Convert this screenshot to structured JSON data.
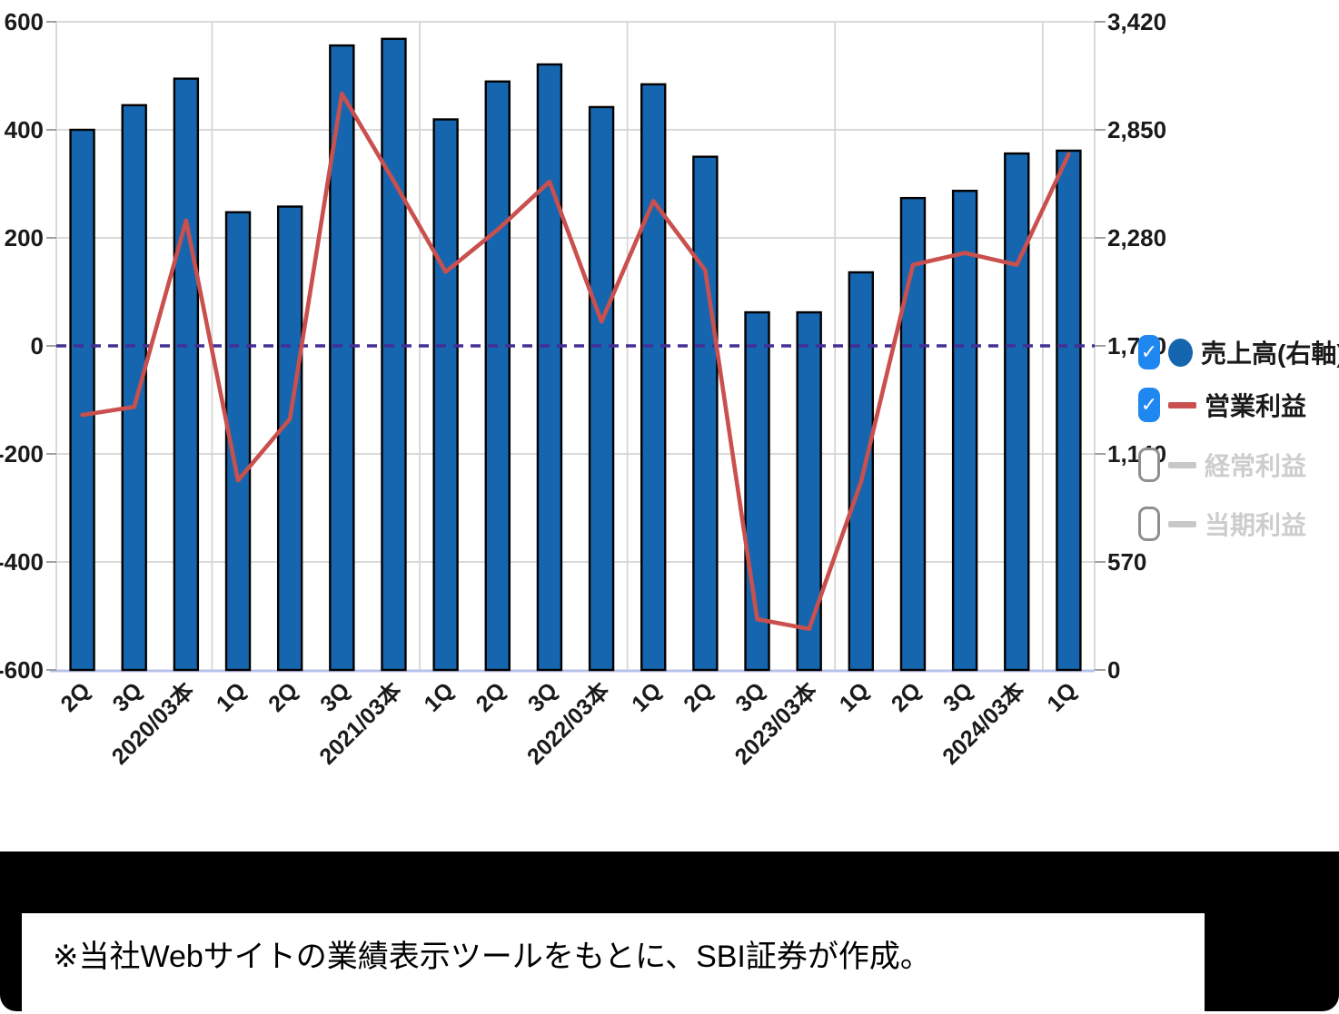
{
  "chart_data": {
    "type": "bar",
    "subtype": "combo-bar-line-dual-axis",
    "categories": [
      "2Q",
      "3Q",
      "2020/03本",
      "1Q",
      "2Q",
      "3Q",
      "2021/03本",
      "1Q",
      "2Q",
      "3Q",
      "2022/03本",
      "1Q",
      "2Q",
      "3Q",
      "2023/03本",
      "1Q",
      "2Q",
      "3Q",
      "2024/03本",
      "1Q"
    ],
    "series": [
      {
        "name": "売上高(右軸)",
        "type": "bar",
        "axis": "right",
        "color": "#1566AE",
        "outline": "#000000",
        "enabled": true,
        "values": [
          2850,
          2980,
          3120,
          2415,
          2445,
          3295,
          3330,
          2905,
          3105,
          3195,
          2970,
          3090,
          2708,
          1887,
          1887,
          2098,
          2490,
          2528,
          2725,
          2740
        ]
      },
      {
        "name": "営業利益",
        "type": "line",
        "axis": "left",
        "color": "#C9504E",
        "enabled": true,
        "values": [
          -128,
          -113,
          232,
          -249,
          -135,
          467,
          305,
          137,
          215,
          304,
          45,
          268,
          140,
          -506,
          -524,
          -252,
          150,
          172,
          150,
          355
        ]
      },
      {
        "name": "経常利益",
        "type": "line",
        "axis": "left",
        "color": "#C8C8C8",
        "enabled": false,
        "values": []
      },
      {
        "name": "当期利益",
        "type": "line",
        "axis": "left",
        "color": "#C8C8C8",
        "enabled": false,
        "values": []
      }
    ],
    "left_axis": {
      "min": -600,
      "max": 600,
      "ticks": [
        600,
        400,
        200,
        0,
        -200,
        -400,
        -600
      ],
      "tick_labels": [
        "600",
        "400",
        "200",
        "0",
        "-200",
        "-400",
        "-600"
      ]
    },
    "right_axis": {
      "min": 0,
      "max": 3420,
      "ticks": [
        3420,
        2850,
        2280,
        1710,
        1140,
        570,
        0
      ],
      "tick_labels": [
        "3,420",
        "2,850",
        "2,280",
        "1,710",
        "1,140",
        "570",
        "0"
      ]
    },
    "zero_line": {
      "value": 0,
      "style": "dashed",
      "color": "#452F96"
    },
    "year_dividers_after_index": [
      2,
      6,
      10,
      14,
      18
    ],
    "grid": {
      "show": true,
      "color": "#D4D4D4",
      "baseline_color": "#B9C2EA",
      "tick_color": "#A0A0A0"
    },
    "legend_position": "right"
  },
  "legend": {
    "checkbox_color": "#1E87F0",
    "check_glyph": "✓",
    "items": [
      {
        "label": "売上高(右軸)",
        "checked": true,
        "marker": "circle",
        "marker_color": "#1566AE",
        "text_color": "#1A1A1A"
      },
      {
        "label": "営業利益",
        "checked": true,
        "marker": "line",
        "marker_color": "#C9504E",
        "text_color": "#1A1A1A"
      },
      {
        "label": "経常利益",
        "checked": false,
        "marker": "line",
        "marker_color": "#C8C8C8",
        "text_color": "#CDCDCD"
      },
      {
        "label": "当期利益",
        "checked": false,
        "marker": "line",
        "marker_color": "#C8C8C8",
        "text_color": "#CDCDCD"
      }
    ]
  },
  "caption": {
    "text": "※当社Webサイトの業績表示ツールをもとに、SBI証券が作成。"
  }
}
